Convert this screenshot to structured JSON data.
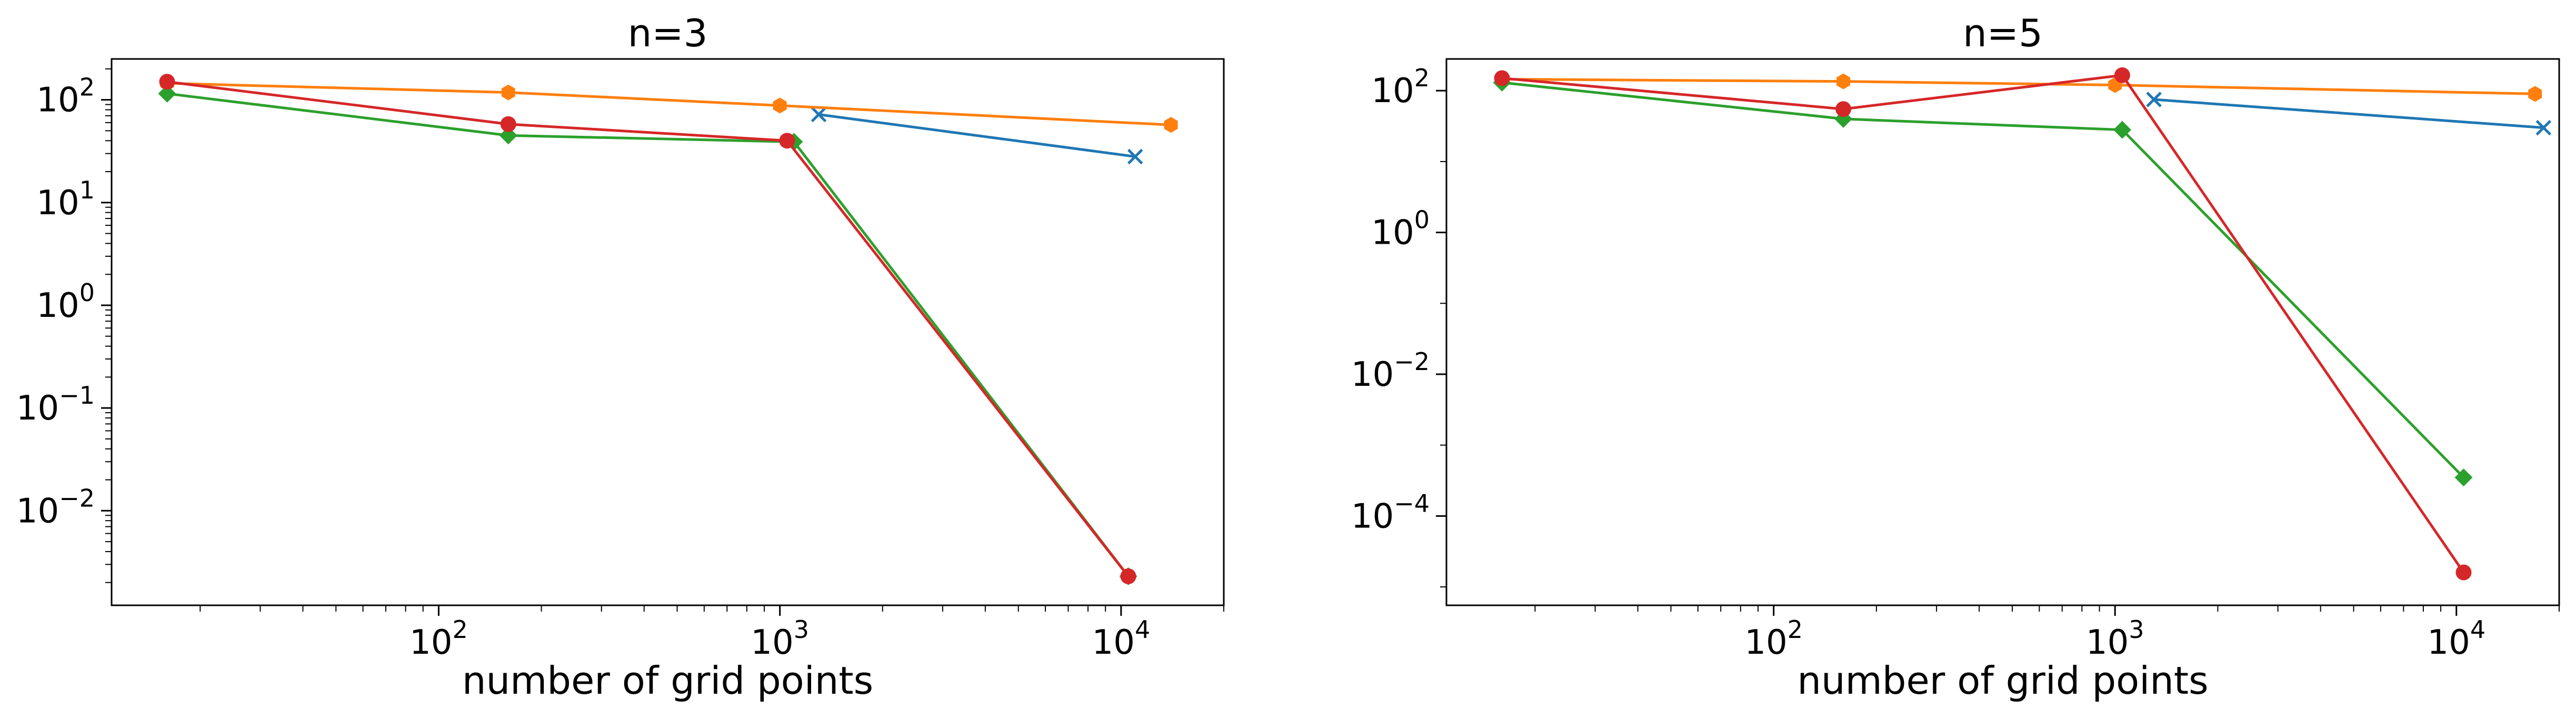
{
  "colors": {
    "blue": "#1f77b4",
    "orange": "#ff7f0e",
    "green": "#2ca02c",
    "red": "#d62728"
  },
  "chart_data": [
    {
      "type": "line",
      "title": "n=3",
      "xlabel": "number of grid points",
      "ylabel": "",
      "xscale": "log",
      "yscale": "log",
      "xlim": [
        11,
        20000
      ],
      "ylim": [
        0.0012,
        250
      ],
      "x_tick_labels": [
        {
          "value": 100,
          "base": "10",
          "exp": "2"
        },
        {
          "value": 1000,
          "base": "10",
          "exp": "3"
        },
        {
          "value": 10000,
          "base": "10",
          "exp": "4"
        }
      ],
      "y_tick_labels": [
        {
          "value": 0.01,
          "base": "10",
          "exp": "−2"
        },
        {
          "value": 0.1,
          "base": "10",
          "exp": "−1"
        },
        {
          "value": 1,
          "base": "10",
          "exp": "0"
        },
        {
          "value": 10,
          "base": "10",
          "exp": "1"
        },
        {
          "value": 100,
          "base": "10",
          "exp": "2"
        }
      ],
      "grid": false,
      "series": [
        {
          "color": "blue",
          "marker": "x",
          "x": [
            1300,
            11000
          ],
          "y": [
            72,
            28
          ]
        },
        {
          "color": "orange",
          "marker": "hexagon",
          "x": [
            16,
            160,
            1000,
            14000
          ],
          "y": [
            145,
            118,
            88,
            57
          ]
        },
        {
          "color": "green",
          "marker": "diamond",
          "x": [
            16,
            160,
            1100,
            10500
          ],
          "y": [
            115,
            45,
            39,
            0.0023
          ]
        },
        {
          "color": "red",
          "marker": "circle",
          "x": [
            16,
            160,
            1050,
            10500
          ],
          "y": [
            150,
            58,
            40,
            0.0023
          ]
        }
      ]
    },
    {
      "type": "line",
      "title": "n=5",
      "xlabel": "number of grid points",
      "ylabel": "",
      "xscale": "log",
      "yscale": "log",
      "xlim": [
        11,
        20000
      ],
      "ylim": [
        5.5e-06,
        280
      ],
      "x_tick_labels": [
        {
          "value": 100,
          "base": "10",
          "exp": "2"
        },
        {
          "value": 1000,
          "base": "10",
          "exp": "3"
        },
        {
          "value": 10000,
          "base": "10",
          "exp": "4"
        }
      ],
      "y_tick_labels": [
        {
          "value": 0.0001,
          "base": "10",
          "exp": "−4"
        },
        {
          "value": 0.01,
          "base": "10",
          "exp": "−2"
        },
        {
          "value": 1,
          "base": "10",
          "exp": "0"
        },
        {
          "value": 100,
          "base": "10",
          "exp": "2"
        }
      ],
      "grid": false,
      "series": [
        {
          "color": "blue",
          "marker": "x",
          "x": [
            1300,
            18000
          ],
          "y": [
            75,
            30
          ]
        },
        {
          "color": "orange",
          "marker": "hexagon",
          "x": [
            16,
            160,
            1000,
            17000
          ],
          "y": [
            145,
            135,
            120,
            90
          ]
        },
        {
          "color": "green",
          "marker": "diamond",
          "x": [
            16,
            160,
            1050,
            10500
          ],
          "y": [
            130,
            40,
            28,
            0.00035
          ]
        },
        {
          "color": "red",
          "marker": "circle",
          "x": [
            16,
            160,
            1050,
            10500
          ],
          "y": [
            150,
            55,
            165,
            1.6e-05
          ]
        }
      ]
    }
  ]
}
